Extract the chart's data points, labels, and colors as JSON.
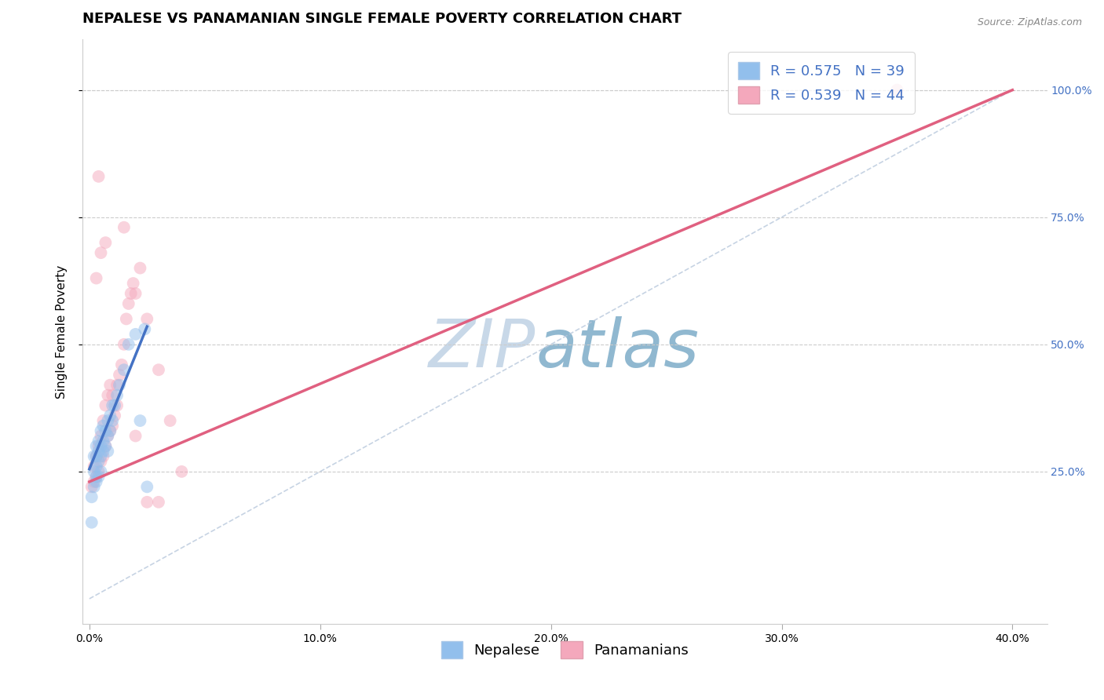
{
  "title": "NEPALESE VS PANAMANIAN SINGLE FEMALE POVERTY CORRELATION CHART",
  "source": "Source: ZipAtlas.com",
  "xlabel_ticks": [
    "0.0%",
    "10.0%",
    "20.0%",
    "30.0%",
    "40.0%"
  ],
  "ylabel_ticks": [
    "25.0%",
    "50.0%",
    "75.0%",
    "100.0%"
  ],
  "xlabel_vals": [
    0.0,
    0.1,
    0.2,
    0.3,
    0.4
  ],
  "ylabel_vals": [
    0.25,
    0.5,
    0.75,
    1.0
  ],
  "xlim": [
    -0.003,
    0.415
  ],
  "ylim": [
    -0.05,
    1.1
  ],
  "nepalese_color": "#92bfec",
  "panamanian_color": "#f4a8bc",
  "nepalese_line_color": "#4472c4",
  "panamanian_line_color": "#e06080",
  "ref_line_color": "#b8c8dc",
  "legend_blue_color": "#92bfec",
  "legend_pink_color": "#f4a8bc",
  "legend_text_color": "#4472c4",
  "R_nepalese": 0.575,
  "N_nepalese": 39,
  "R_panamanian": 0.539,
  "N_panamanian": 44,
  "watermark_zip": "ZIP",
  "watermark_atlas": "atlas",
  "watermark_color_zip": "#c8d8e8",
  "watermark_color_atlas": "#90b8d0",
  "background_color": "#ffffff",
  "grid_color": "#cccccc",
  "title_fontsize": 13,
  "label_fontsize": 11,
  "tick_fontsize": 10,
  "legend_fontsize": 13,
  "marker_size": 130,
  "marker_alpha": 0.5,
  "line_width": 2.5,
  "nepalese_x": [
    0.001,
    0.001,
    0.002,
    0.002,
    0.002,
    0.003,
    0.003,
    0.003,
    0.003,
    0.004,
    0.004,
    0.004,
    0.005,
    0.005,
    0.005,
    0.006,
    0.006,
    0.006,
    0.007,
    0.007,
    0.008,
    0.008,
    0.009,
    0.009,
    0.01,
    0.01,
    0.011,
    0.012,
    0.013,
    0.015,
    0.017,
    0.02,
    0.022,
    0.025,
    0.003,
    0.004,
    0.005,
    0.008,
    0.024
  ],
  "nepalese_y": [
    0.15,
    0.2,
    0.22,
    0.25,
    0.28,
    0.24,
    0.26,
    0.28,
    0.3,
    0.27,
    0.29,
    0.31,
    0.28,
    0.3,
    0.33,
    0.29,
    0.31,
    0.34,
    0.3,
    0.33,
    0.32,
    0.35,
    0.33,
    0.36,
    0.35,
    0.38,
    0.38,
    0.4,
    0.42,
    0.45,
    0.5,
    0.52,
    0.35,
    0.22,
    0.23,
    0.24,
    0.25,
    0.29,
    0.53
  ],
  "panamanian_x": [
    0.001,
    0.002,
    0.002,
    0.003,
    0.003,
    0.004,
    0.004,
    0.005,
    0.005,
    0.006,
    0.006,
    0.007,
    0.007,
    0.008,
    0.008,
    0.009,
    0.009,
    0.01,
    0.01,
    0.011,
    0.012,
    0.012,
    0.013,
    0.014,
    0.015,
    0.016,
    0.017,
    0.018,
    0.019,
    0.02,
    0.022,
    0.025,
    0.03,
    0.035,
    0.04,
    0.003,
    0.005,
    0.007,
    0.015,
    0.02,
    0.025,
    0.03,
    0.35,
    0.004
  ],
  "panamanian_y": [
    0.22,
    0.23,
    0.26,
    0.24,
    0.28,
    0.25,
    0.3,
    0.27,
    0.32,
    0.28,
    0.35,
    0.3,
    0.38,
    0.32,
    0.4,
    0.33,
    0.42,
    0.34,
    0.4,
    0.36,
    0.38,
    0.42,
    0.44,
    0.46,
    0.5,
    0.55,
    0.58,
    0.6,
    0.62,
    0.6,
    0.65,
    0.55,
    0.45,
    0.35,
    0.25,
    0.63,
    0.68,
    0.7,
    0.73,
    0.32,
    0.19,
    0.19,
    1.0,
    0.83
  ],
  "nep_line_x0": 0.0,
  "nep_line_y0": 0.255,
  "nep_line_x1": 0.025,
  "nep_line_y1": 0.535,
  "pan_line_x0": 0.0,
  "pan_line_y0": 0.23,
  "pan_line_x1": 0.4,
  "pan_line_y1": 1.0
}
